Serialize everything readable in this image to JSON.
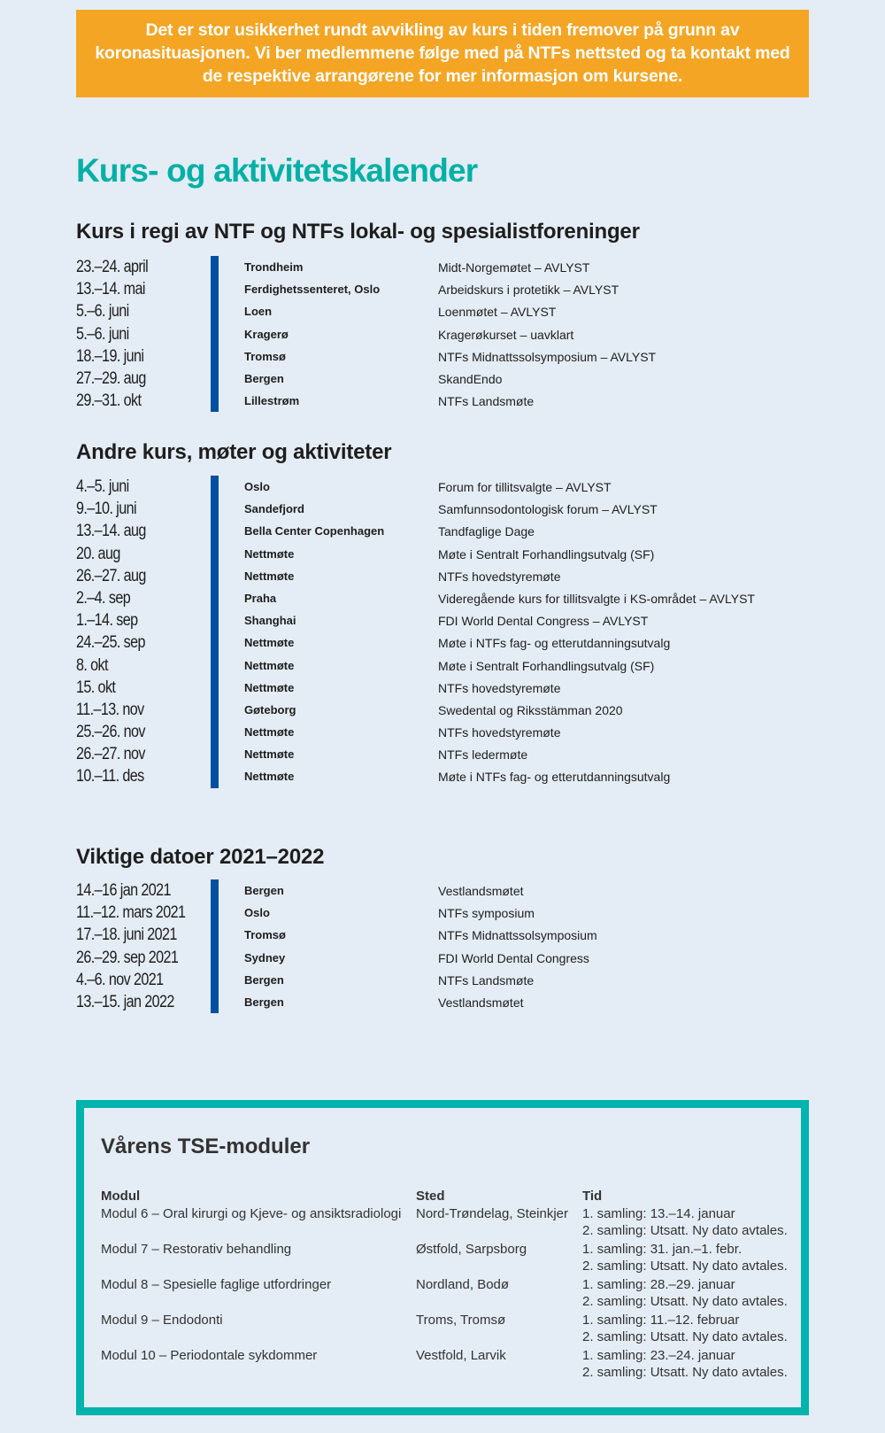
{
  "notice": "Det er stor usikkerhet rundt avvikling av kurs i tiden fremover på grunn av koronasituasjonen. Vi ber medlemmene følge med på NTFs nettsted og ta kontakt med de respektive arrangørene for mer informasjon om kursene.",
  "title": "Kurs- og aktivitetskalender",
  "colors": {
    "accent": "#00b0a6",
    "banner": "#f5a524",
    "bar": "#0050a0",
    "background": "#e4ecf5"
  },
  "sections": [
    {
      "heading": "Kurs i regi av NTF og NTFs lokal- og spesialistforeninger",
      "rows": [
        [
          "23.–24. april",
          "Trondheim",
          "Midt-Norgemøtet – AVLYST"
        ],
        [
          "13.–14. mai",
          "Ferdighetssenteret, Oslo",
          "Arbeidskurs i protetikk – AVLYST"
        ],
        [
          "5.–6. juni",
          "Loen",
          "Loenmøtet – AVLYST"
        ],
        [
          "5.–6. juni",
          "Kragerø",
          "Kragerøkurset – uavklart"
        ],
        [
          "18.–19. juni",
          "Tromsø",
          "NTFs Midnattssolsymposium – AVLYST"
        ],
        [
          "27.–29. aug",
          "Bergen",
          "SkandEndo"
        ],
        [
          "29.–31. okt",
          "Lillestrøm",
          "NTFs Landsmøte"
        ]
      ]
    },
    {
      "heading": "Andre kurs, møter og aktiviteter",
      "rows": [
        [
          "4.–5. juni",
          "Oslo",
          "Forum for tillitsvalgte – AVLYST"
        ],
        [
          "9.–10. juni",
          "Sandefjord",
          "Samfunnsodontologisk forum – AVLYST"
        ],
        [
          "13.–14. aug",
          "Bella Center Copenhagen",
          "Tandfaglige Dage"
        ],
        [
          "20. aug",
          "Nettmøte",
          "Møte i Sentralt Forhandlingsutvalg (SF)"
        ],
        [
          "26.–27. aug",
          "Nettmøte",
          "NTFs hovedstyremøte"
        ],
        [
          "2.–4. sep",
          "Praha",
          "Videregående kurs for tillitsvalgte i KS-området – AVLYST"
        ],
        [
          "1.–14. sep",
          "Shanghai",
          "FDI World Dental Congress – AVLYST"
        ],
        [
          "24.–25. sep",
          "Nettmøte",
          "Møte i NTFs fag- og etterutdanningsutvalg"
        ],
        [
          "8. okt",
          "Nettmøte",
          "Møte i Sentralt Forhandlingsutvalg (SF)"
        ],
        [
          "15. okt",
          "Nettmøte",
          "NTFs hovedstyremøte"
        ],
        [
          "11.–13. nov",
          "Gøteborg",
          "Swedental og Riksstämman 2020"
        ],
        [
          "25.–26. nov",
          "Nettmøte",
          "NTFs hovedstyremøte"
        ],
        [
          "26.–27. nov",
          "Nettmøte",
          "NTFs ledermøte"
        ],
        [
          "10.–11. des",
          "Nettmøte",
          "Møte i NTFs fag- og etterutdanningsutvalg"
        ]
      ]
    },
    {
      "heading": "Viktige datoer 2021–2022",
      "rows": [
        [
          "14.–16 jan 2021",
          "Bergen",
          "Vestlandsmøtet"
        ],
        [
          "11.–12. mars 2021",
          "Oslo",
          "NTFs symposium"
        ],
        [
          "17.–18. juni 2021",
          "Tromsø",
          "NTFs Midnattssolsymposium"
        ],
        [
          "26.–29. sep 2021",
          "Sydney",
          "FDI World Dental Congress"
        ],
        [
          "4.–6. nov 2021",
          "Bergen",
          "NTFs Landsmøte"
        ],
        [
          "13.–15. jan 2022",
          "Bergen",
          "Vestlandsmøtet"
        ]
      ]
    }
  ],
  "tse": {
    "title": "Vårens TSE-moduler",
    "headers": [
      "Modul",
      "Sted",
      "Tid"
    ],
    "rows": [
      [
        "Modul 6 – Oral kirurgi og Kjeve- og ansiktsradiologi",
        "Nord-Trøndelag, Steinkjer",
        "1. samling: 13.–14. januar",
        "2. samling: Utsatt. Ny dato avtales."
      ],
      [
        "Modul 7 – Restorativ behandling",
        "Østfold, Sarpsborg",
        "1. samling: 31. jan.–1. febr.",
        "2. samling: Utsatt. Ny dato avtales."
      ],
      [
        "Modul 8 – Spesielle faglige utfordringer",
        "Nordland, Bodø",
        "1. samling: 28.–29. januar",
        "2. samling: Utsatt. Ny dato avtales."
      ],
      [
        "Modul 9 – Endodonti",
        "Troms, Tromsø",
        "1. samling: 11.–12. februar",
        "2. samling: Utsatt. Ny dato avtales."
      ],
      [
        "Modul 10 – Periodontale sykdommer",
        "Vestfold, Larvik",
        "1. samling: 23.–24. januar",
        "2. samling: Utsatt. Ny dato avtales."
      ]
    ]
  }
}
